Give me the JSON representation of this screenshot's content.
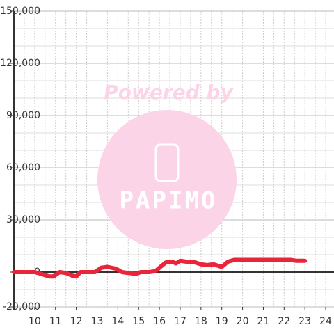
{
  "chart_data": {
    "type": "line",
    "watermark": {
      "caption": "Powered by",
      "brand": "PAPIMO"
    },
    "x": [
      9.0,
      10.0,
      10.3,
      10.7,
      10.9,
      11.2,
      11.5,
      11.8,
      12.0,
      12.2,
      12.5,
      12.9,
      13.2,
      13.5,
      13.9,
      14.2,
      14.5,
      14.9,
      15.1,
      15.5,
      15.8,
      16.1,
      16.3,
      16.6,
      16.8,
      17.0,
      17.3,
      17.6,
      18.0,
      18.3,
      18.6,
      19.0,
      19.3,
      19.6,
      20.0,
      21.0,
      22.0,
      22.3,
      22.6,
      23.0
    ],
    "series": [
      {
        "color": "#e8253a",
        "values": [
          0,
          0,
          -1000,
          -2500,
          -2500,
          0,
          -500,
          -2000,
          -2500,
          0,
          0,
          0,
          2500,
          3000,
          2000,
          0,
          -500,
          -1000,
          0,
          0,
          500,
          3500,
          5500,
          6000,
          5000,
          6500,
          6000,
          6000,
          4500,
          4000,
          4500,
          3000,
          6000,
          7000,
          7000,
          7000,
          7000,
          7000,
          6500,
          6500
        ]
      }
    ],
    "xlim": [
      9,
      24.4
    ],
    "xticks": [
      10,
      11,
      12,
      13,
      14,
      15,
      16,
      17,
      18,
      19,
      20,
      21,
      22,
      23,
      24
    ],
    "x_gridlines": [
      9.5,
      10,
      10.5,
      11,
      11.5,
      12,
      12.5,
      13,
      13.5,
      14,
      14.5,
      15,
      15.5,
      16,
      16.5,
      17,
      17.5,
      18,
      18.5,
      19,
      19.5,
      20,
      20.5,
      21,
      21.5,
      22,
      22.5,
      23,
      23.5,
      24
    ],
    "ylim": [
      -20000,
      150000
    ],
    "yticks": [
      {
        "value": -20000,
        "label": "-20,000"
      },
      0,
      {
        "value": 30000,
        "label": "30,000"
      },
      {
        "value": 60000,
        "label": "60,000"
      },
      {
        "value": 90000,
        "label": "90,000"
      },
      {
        "value": 120000,
        "label": "120,000"
      },
      {
        "value": 150000,
        "label": "150,000"
      }
    ],
    "y_gridlines": [
      -10000,
      10000,
      20000,
      40000,
      50000,
      70000,
      80000,
      100000,
      110000,
      130000,
      140000
    ],
    "grid": true
  }
}
